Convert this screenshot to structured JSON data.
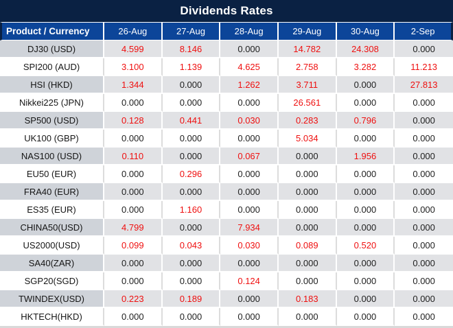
{
  "title": "Dividends Rates",
  "chart_data": {
    "type": "table",
    "title": "Dividends Rates",
    "columns": [
      "Product / Currency",
      "26-Aug",
      "27-Aug",
      "28-Aug",
      "29-Aug",
      "30-Aug",
      "2-Sep"
    ],
    "rows": [
      {
        "product": "DJ30 (USD)",
        "values": [
          "4.599",
          "8.146",
          "0.000",
          "14.782",
          "24.308",
          "0.000"
        ]
      },
      {
        "product": "SPI200 (AUD)",
        "values": [
          "3.100",
          "1.139",
          "4.625",
          "2.758",
          "3.282",
          "11.213"
        ]
      },
      {
        "product": "HSI (HKD)",
        "values": [
          "1.344",
          "0.000",
          "1.262",
          "3.711",
          "0.000",
          "27.813"
        ]
      },
      {
        "product": "Nikkei225 (JPN)",
        "values": [
          "0.000",
          "0.000",
          "0.000",
          "26.561",
          "0.000",
          "0.000"
        ]
      },
      {
        "product": "SP500 (USD)",
        "values": [
          "0.128",
          "0.441",
          "0.030",
          "0.283",
          "0.796",
          "0.000"
        ]
      },
      {
        "product": "UK100 (GBP)",
        "values": [
          "0.000",
          "0.000",
          "0.000",
          "5.034",
          "0.000",
          "0.000"
        ]
      },
      {
        "product": "NAS100 (USD)",
        "values": [
          "0.110",
          "0.000",
          "0.067",
          "0.000",
          "1.956",
          "0.000"
        ]
      },
      {
        "product": "EU50 (EUR)",
        "values": [
          "0.000",
          "0.296",
          "0.000",
          "0.000",
          "0.000",
          "0.000"
        ]
      },
      {
        "product": "FRA40 (EUR)",
        "values": [
          "0.000",
          "0.000",
          "0.000",
          "0.000",
          "0.000",
          "0.000"
        ]
      },
      {
        "product": "ES35 (EUR)",
        "values": [
          "0.000",
          "1.160",
          "0.000",
          "0.000",
          "0.000",
          "0.000"
        ]
      },
      {
        "product": "CHINA50(USD)",
        "values": [
          "4.799",
          "0.000",
          "7.934",
          "0.000",
          "0.000",
          "0.000"
        ]
      },
      {
        "product": "US2000(USD)",
        "values": [
          "0.099",
          "0.043",
          "0.030",
          "0.089",
          "0.520",
          "0.000"
        ]
      },
      {
        "product": "SA40(ZAR)",
        "values": [
          "0.000",
          "0.000",
          "0.000",
          "0.000",
          "0.000",
          "0.000"
        ]
      },
      {
        "product": "SGP20(SGD)",
        "values": [
          "0.000",
          "0.000",
          "0.124",
          "0.000",
          "0.000",
          "0.000"
        ]
      },
      {
        "product": "TWINDEX(USD)",
        "values": [
          "0.223",
          "0.189",
          "0.000",
          "0.183",
          "0.000",
          "0.000"
        ]
      },
      {
        "product": "HKTECH(HKD)",
        "values": [
          "0.000",
          "0.000",
          "0.000",
          "0.000",
          "0.000",
          "0.000"
        ]
      }
    ],
    "zero_value": "0.000",
    "highlight_rule": "values not equal to 0.000 are rendered in red"
  },
  "colors": {
    "title_bg": "#0A2143",
    "header_bg": "#0C4599",
    "alt_row_product_bg": "#CFD3D9",
    "alt_row_value_bg": "#E1E2E5",
    "nonzero_value": "#EF0F0F",
    "zero_value_text": "#202020"
  }
}
